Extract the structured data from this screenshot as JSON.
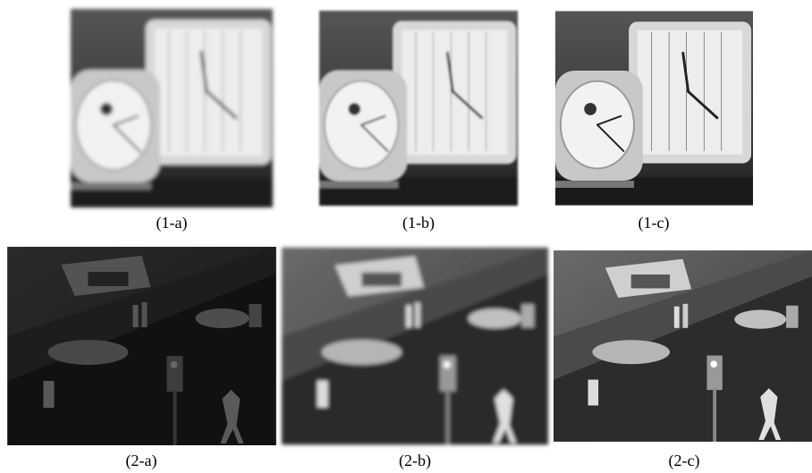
{
  "figure": {
    "captions": [
      "(1-a)",
      "(1-b)",
      "(1-c)",
      "(2-a)",
      "(2-b)",
      "(2-c)"
    ]
  }
}
